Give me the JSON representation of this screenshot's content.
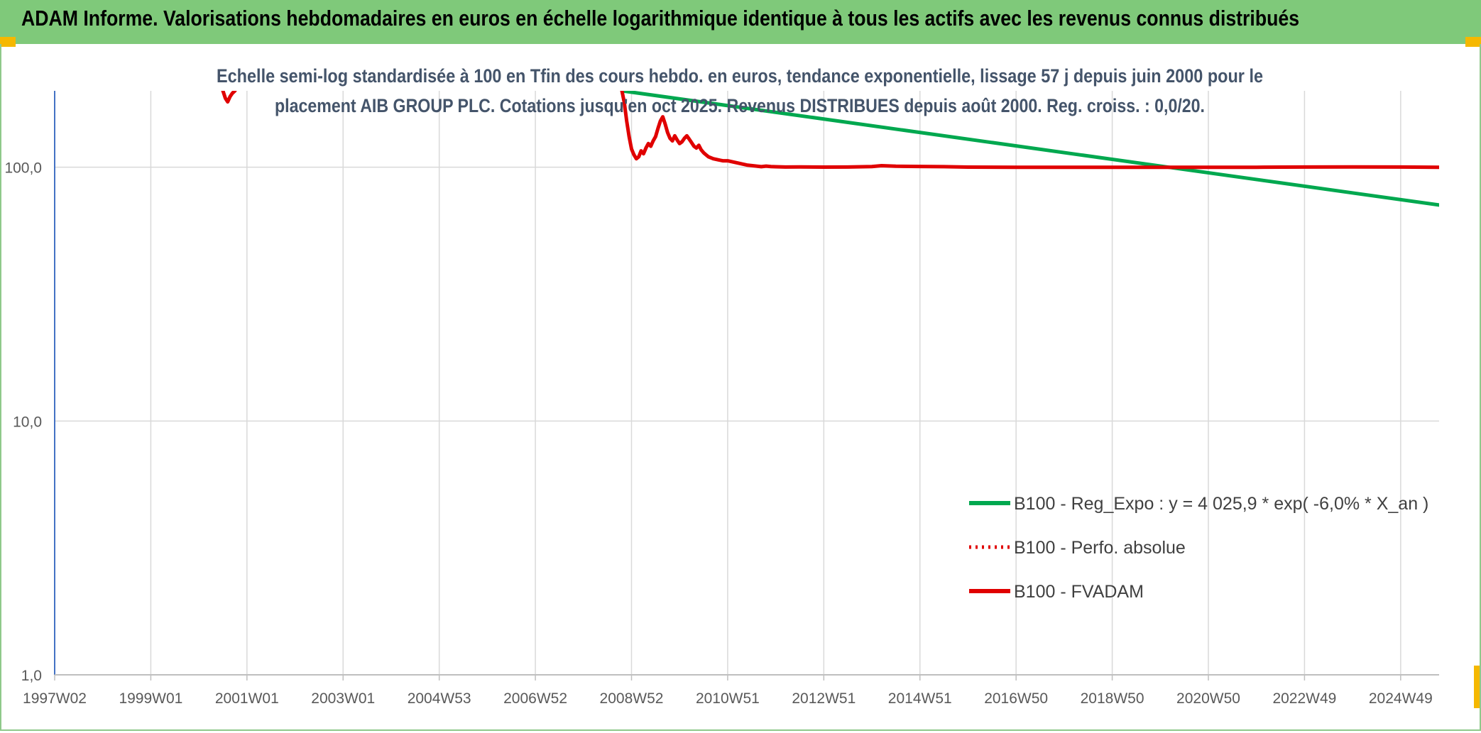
{
  "header": {
    "title": "ADAM Informe. Valorisations hebdomadaires en euros en échelle logarithmique identique à tous les actifs avec les revenus connus distribués"
  },
  "chart_data": {
    "type": "line",
    "title": "",
    "subtitle_lines": [
      "Echelle semi-log standardisée à 100 en Tfin des cours hebdo. en euros, tendance exponentielle, lissage 57 j depuis juin 2000 pour le",
      "placement AIB GROUP PLC. Cotations jusqu'en oct 2025. Revenus DISTRIBUES depuis août 2000. Reg. croiss. : 0,0/20."
    ],
    "y_scale": "log",
    "ylim": [
      1,
      200
    ],
    "y_ticks": [
      {
        "value": 1,
        "label": "1,0"
      },
      {
        "value": 10,
        "label": "10,0"
      },
      {
        "value": 100,
        "label": "100,0"
      }
    ],
    "x_range": [
      1997.0,
      2025.8
    ],
    "x_ticks": [
      {
        "value": 1997.0,
        "label": "1997W02"
      },
      {
        "value": 1999.0,
        "label": "1999W01"
      },
      {
        "value": 2001.0,
        "label": "2001W01"
      },
      {
        "value": 2003.0,
        "label": "2003W01"
      },
      {
        "value": 2005.0,
        "label": "2004W53"
      },
      {
        "value": 2007.0,
        "label": "2006W52"
      },
      {
        "value": 2009.0,
        "label": "2008W52"
      },
      {
        "value": 2011.0,
        "label": "2010W51"
      },
      {
        "value": 2013.0,
        "label": "2012W51"
      },
      {
        "value": 2015.0,
        "label": "2014W51"
      },
      {
        "value": 2017.0,
        "label": "2016W50"
      },
      {
        "value": 2019.0,
        "label": "2018W50"
      },
      {
        "value": 2021.0,
        "label": "2020W50"
      },
      {
        "value": 2023.0,
        "label": "2022W49"
      },
      {
        "value": 2025.0,
        "label": "2024W49"
      }
    ],
    "grid": true,
    "legend_placement": "bottom-right",
    "series": [
      {
        "name": "B100 - Reg_Expo : y = 4 025,9 * exp( -6,0% *  X_an )",
        "color": "#00a84f",
        "style": "solid",
        "x": [
          2008.8,
          2025.8
        ],
        "y": [
          200,
          71
        ]
      },
      {
        "name": "B100 - Perfo. absolue",
        "color": "#e00000",
        "style": "dotted",
        "x": [],
        "y": []
      },
      {
        "name": "B100 - FVADAM",
        "color": "#e00000",
        "style": "solid",
        "segments": [
          {
            "x": [
              2000.5,
              2000.55,
              2000.6,
              2000.65,
              2000.7,
              2000.75
            ],
            "y": [
              200,
              187,
              181,
              190,
              196,
              200
            ]
          },
          {
            "x": [
              2008.8,
              2008.85,
              2008.9,
              2008.95,
              2009.0,
              2009.05,
              2009.1,
              2009.15,
              2009.2,
              2009.25,
              2009.3,
              2009.35,
              2009.4,
              2009.45,
              2009.5,
              2009.55,
              2009.6,
              2009.65,
              2009.7,
              2009.75,
              2009.8,
              2009.85,
              2009.9,
              2009.95,
              2010.0,
              2010.05,
              2010.1,
              2010.15,
              2010.2,
              2010.25,
              2010.3,
              2010.35,
              2010.4,
              2010.45,
              2010.5,
              2010.55,
              2010.6,
              2010.7,
              2010.8,
              2010.9,
              2011.0,
              2011.1,
              2011.2,
              2011.3,
              2011.4,
              2011.5,
              2011.6,
              2011.7,
              2011.8,
              2011.9,
              2012.0,
              2012.2,
              2012.5,
              2013.0,
              2013.5,
              2014.0,
              2014.2,
              2014.5,
              2015.0,
              2015.5,
              2016.0,
              2017.0,
              2018.0,
              2019.0,
              2020.0,
              2021.0,
              2022.0,
              2023.0,
              2024.0,
              2025.0,
              2025.8
            ],
            "y": [
              200,
              180,
              152,
              132,
              118,
              112,
              108,
              110,
              116,
              113,
              119,
              124,
              121,
              127,
              132,
              142,
              152,
              158,
              148,
              137,
              130,
              127,
              133,
              128,
              124,
              126,
              130,
              133,
              129,
              125,
              121,
              119,
              122,
              117,
              114,
              112,
              110,
              108,
              107,
              106,
              106,
              105,
              104,
              103,
              102,
              101.5,
              101,
              100.5,
              101,
              100.6,
              100.4,
              100.2,
              100.3,
              100.1,
              100.2,
              100.6,
              101.4,
              100.9,
              100.7,
              100.5,
              100.1,
              100,
              100,
              100,
              100,
              100,
              100,
              100.2,
              100.3,
              100.2,
              100
            ]
          }
        ]
      }
    ]
  }
}
